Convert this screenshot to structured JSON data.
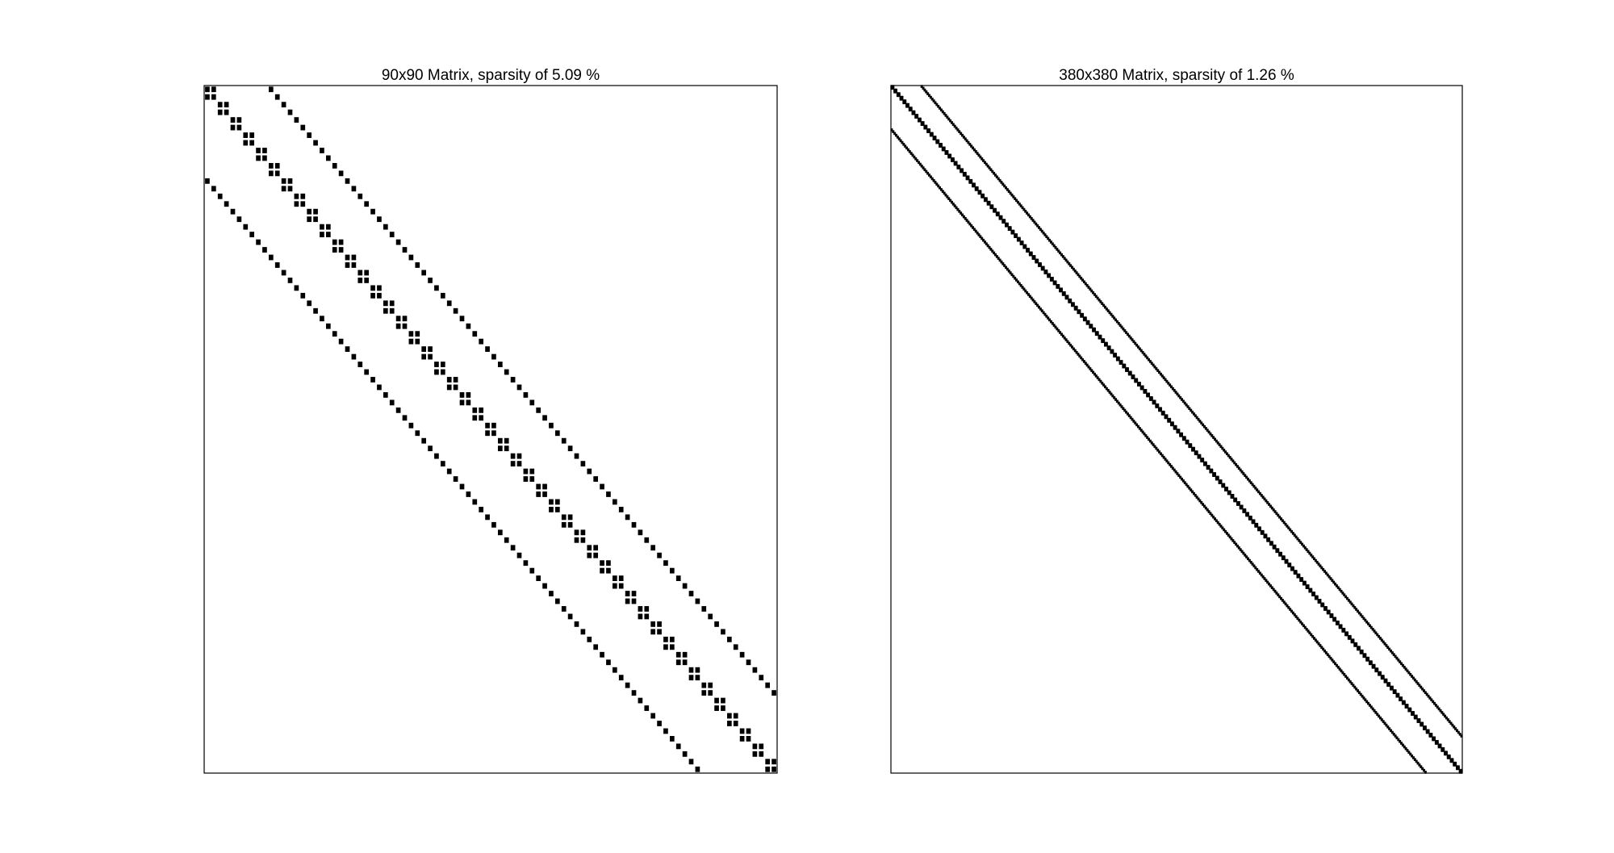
{
  "figure": {
    "background": "#ffffff",
    "mark_color": "#000000",
    "frame_color": "#000000"
  },
  "chart_data": [
    {
      "type": "heatmap",
      "kind": "sparsity-pattern",
      "title": "90x90 Matrix, sparsity of 5.09 %",
      "rows": 90,
      "cols": 90,
      "sparsity_percent": 5.09,
      "xlabel": "",
      "ylabel": "",
      "axes_visible": false,
      "ticks": false,
      "grid": false,
      "diagonals": [
        {
          "offset": 0,
          "description": "main diagonal, thickened by 2x2 blocks"
        },
        {
          "offset": 1,
          "description": "within diagonal blocks"
        },
        {
          "offset": -1,
          "description": "within diagonal blocks"
        },
        {
          "offset": 10,
          "description": "upper off-diagonal band"
        },
        {
          "offset": -12,
          "description": "lower off-diagonal band"
        }
      ]
    },
    {
      "type": "heatmap",
      "kind": "sparsity-pattern",
      "title": "380x380 Matrix, sparsity of 1.26 %",
      "rows": 380,
      "cols": 380,
      "sparsity_percent": 1.26,
      "xlabel": "",
      "ylabel": "",
      "axes_visible": false,
      "ticks": false,
      "grid": false,
      "diagonals": [
        {
          "offset": 0,
          "description": "main diagonal"
        },
        {
          "offset": 1,
          "description": "near-diagonal"
        },
        {
          "offset": -1,
          "description": "near-diagonal"
        },
        {
          "offset": 20,
          "description": "upper off-diagonal band"
        },
        {
          "offset": -24,
          "description": "lower off-diagonal band"
        }
      ]
    }
  ]
}
